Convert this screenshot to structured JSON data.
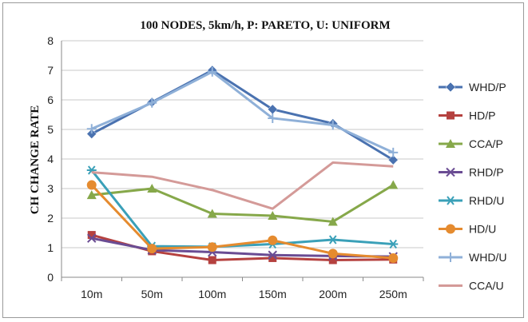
{
  "chart_data": {
    "type": "line",
    "title": "100 NODES, 5km/h, P: PARETO,  U: UNIFORM",
    "xlabel": "",
    "ylabel": "CH CHANGE RATE",
    "categories": [
      "10m",
      "50m",
      "100m",
      "150m",
      "200m",
      "250m"
    ],
    "ylim": [
      0,
      8
    ],
    "yticks": [
      0,
      1,
      2,
      3,
      4,
      5,
      6,
      7,
      8
    ],
    "grid": "horizontal",
    "legend_position": "right",
    "series": [
      {
        "name": "WHD/P",
        "color": "#4a72b0",
        "marker": "diamond",
        "values": [
          4.85,
          5.92,
          7.0,
          5.68,
          5.2,
          3.97
        ]
      },
      {
        "name": "HD/P",
        "color": "#b5413f",
        "marker": "square",
        "values": [
          1.43,
          0.88,
          0.58,
          0.65,
          0.58,
          0.6
        ]
      },
      {
        "name": "CCA/P",
        "color": "#86a84a",
        "marker": "triangle",
        "values": [
          2.78,
          3.0,
          2.15,
          2.08,
          1.88,
          3.12
        ]
      },
      {
        "name": "RHD/P",
        "color": "#6a4c93",
        "marker": "x",
        "values": [
          1.32,
          0.92,
          0.85,
          0.75,
          0.72,
          0.7
        ]
      },
      {
        "name": "RHD/U",
        "color": "#3aa0b8",
        "marker": "asterisk",
        "values": [
          3.62,
          1.05,
          1.03,
          1.12,
          1.27,
          1.12
        ]
      },
      {
        "name": "HD/U",
        "color": "#e58b2f",
        "marker": "circle",
        "values": [
          3.12,
          0.97,
          1.02,
          1.25,
          0.8,
          0.65
        ]
      },
      {
        "name": "WHD/U",
        "color": "#8fb0d8",
        "marker": "plus",
        "values": [
          5.02,
          5.9,
          6.95,
          5.38,
          5.15,
          4.22
        ]
      },
      {
        "name": "CCA/U",
        "color": "#d49a98",
        "marker": "none",
        "values": [
          3.55,
          3.4,
          2.95,
          2.32,
          3.88,
          3.75
        ]
      }
    ]
  }
}
